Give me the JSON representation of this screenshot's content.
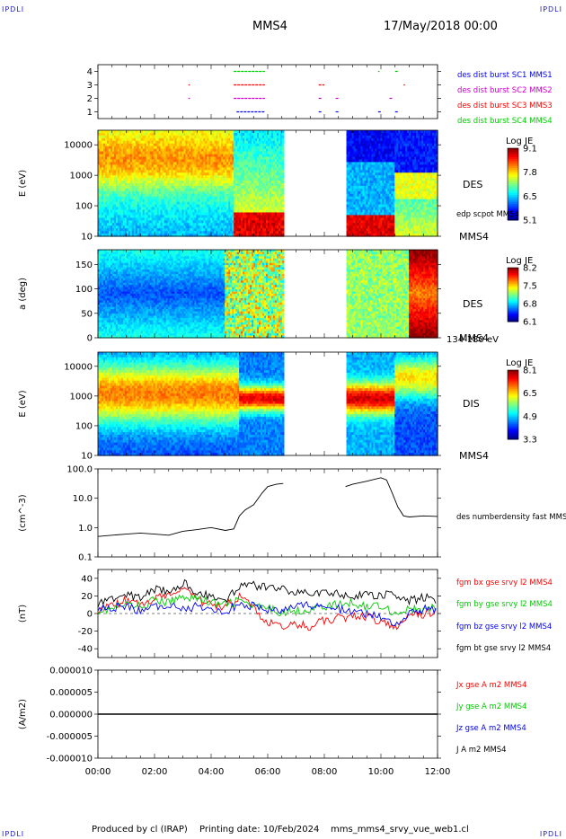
{
  "header": {
    "corner_left_top": "IPDLI",
    "corner_right_top": "IPDLI",
    "corner_left_bottom": "IPDLI",
    "corner_right_bottom": "IPDLI",
    "spacecraft": "MMS4",
    "date": "17/May/2018 00:00"
  },
  "footer": {
    "produced": "Produced by cl (IRAP)",
    "printing": "Printing date: 10/Feb/2024",
    "file": "mms_mms4_srvy_vue_web1.cl"
  },
  "colors": {
    "purple": "#cc00cc",
    "red": "#ff0000",
    "green": "#00cc00",
    "blue": "#0000ff",
    "black": "#000000"
  },
  "chart_data": [
    {
      "type": "scatter",
      "panel": "burst",
      "yticks": [
        "4",
        "3",
        "2",
        "1"
      ],
      "ylim": [
        0.5,
        4.5
      ],
      "series": [
        {
          "name": "des dist burst SC1 MMS1",
          "color": "#0000ff",
          "y": 1,
          "segments": [
            [
              4.9,
              5.9
            ],
            [
              7.8,
              7.9
            ],
            [
              8.4,
              8.5
            ],
            [
              9.9,
              10.0
            ],
            [
              10.5,
              10.6
            ]
          ]
        },
        {
          "name": "des dist burst SC2 MMS2",
          "color": "#cc00cc",
          "y": 2,
          "segments": [
            [
              3.2,
              3.25
            ],
            [
              4.8,
              5.9
            ],
            [
              7.8,
              7.9
            ],
            [
              8.4,
              8.5
            ],
            [
              10.3,
              10.4
            ]
          ]
        },
        {
          "name": "des dist burst SC3 MMS3",
          "color": "#ff0000",
          "y": 3,
          "segments": [
            [
              3.2,
              3.25
            ],
            [
              4.8,
              5.9
            ],
            [
              7.8,
              8.0
            ],
            [
              10.8,
              10.85
            ]
          ]
        },
        {
          "name": "des dist burst SC4 MMS4",
          "color": "#00cc00",
          "y": 4,
          "segments": [
            [
              4.8,
              5.9
            ],
            [
              9.9,
              9.95
            ],
            [
              10.5,
              10.6
            ]
          ]
        }
      ]
    },
    {
      "type": "heatmap",
      "panel": "des_energy",
      "ylabel": "E (eV)",
      "yticks": [
        "10000",
        "1000",
        "100",
        "10"
      ],
      "ylog": true,
      "ylim": [
        10,
        30000
      ],
      "side_label": "DES",
      "side_label_2": "MMS4",
      "overlay_label": "edp scpot MMS4",
      "colorbar": {
        "title": "Log JE",
        "ticks": [
          "9.1",
          "7.8",
          "6.5",
          "5.1"
        ],
        "range": [
          5.1,
          9.1
        ]
      },
      "gap_hours": [
        6.55,
        8.75
      ]
    },
    {
      "type": "heatmap",
      "panel": "des_pitch",
      "ylabel": "a (deg)",
      "yticks": [
        "150",
        "100",
        "50",
        "0"
      ],
      "ylim": [
        0,
        180
      ],
      "side_label": "DES",
      "side_label_2": "MMS4",
      "side_label_3": "134-180 eV",
      "colorbar": {
        "title": "Log JE",
        "ticks": [
          "8.2",
          "7.5",
          "6.8",
          "6.1"
        ],
        "range": [
          6.1,
          8.2
        ]
      },
      "gap_hours": [
        6.55,
        8.75
      ]
    },
    {
      "type": "heatmap",
      "panel": "dis_energy",
      "ylabel": "E (eV)",
      "yticks": [
        "10000",
        "1000",
        "100",
        "10"
      ],
      "ylog": true,
      "ylim": [
        10,
        30000
      ],
      "side_label": "DIS",
      "side_label_2": "MMS4",
      "colorbar": {
        "title": "Log JE",
        "ticks": [
          "8.1",
          "6.5",
          "4.9",
          "3.3"
        ],
        "range": [
          3.3,
          8.1
        ]
      },
      "gap_hours": [
        6.55,
        8.75
      ]
    },
    {
      "type": "line",
      "panel": "density",
      "ylabel": "(cm^-3)",
      "yticks": [
        "100.0",
        "10.0",
        "1.0",
        "0.1"
      ],
      "ylog": true,
      "ylim": [
        0.1,
        100
      ],
      "series": [
        {
          "name": "des numberdensity fast MMS4",
          "color": "#000000",
          "x": [
            0.0,
            0.5,
            1.0,
            1.5,
            2.0,
            2.5,
            3.0,
            3.5,
            4.0,
            4.5,
            4.8,
            5.0,
            5.2,
            5.5,
            5.8,
            6.0,
            6.3,
            6.55,
            8.75,
            9.0,
            9.5,
            10.0,
            10.2,
            10.4,
            10.6,
            10.8,
            11.0,
            11.5,
            12.0
          ],
          "y": [
            0.5,
            0.55,
            0.6,
            0.65,
            0.6,
            0.55,
            0.75,
            0.85,
            1.0,
            0.8,
            0.9,
            2.5,
            4,
            6,
            15,
            25,
            30,
            32,
            25,
            30,
            38,
            50,
            42,
            15,
            5,
            2.5,
            2.3,
            2.5,
            2.4
          ]
        }
      ]
    },
    {
      "type": "line",
      "panel": "fgm",
      "ylabel": "(nT)",
      "yticks": [
        "40",
        "20",
        "0",
        "-20",
        "-40"
      ],
      "ylim": [
        -50,
        50
      ],
      "series": [
        {
          "name": "fgm bx gse srvy l2 MMS4",
          "color": "#ff0000",
          "x": [
            0,
            0.5,
            1,
            1.5,
            2,
            2.5,
            3,
            3.5,
            4,
            4.5,
            5,
            5.5,
            6,
            6.5,
            7,
            7.5,
            8,
            8.5,
            9,
            9.5,
            10,
            10.5,
            11,
            11.5,
            12
          ],
          "y": [
            5,
            8,
            15,
            10,
            18,
            22,
            30,
            15,
            10,
            8,
            20,
            5,
            -10,
            -15,
            -12,
            -15,
            -8,
            -5,
            -3,
            -4,
            -10,
            -15,
            0,
            -2,
            5
          ]
        },
        {
          "name": "fgm by gse srvy l2 MMS4",
          "color": "#00cc00",
          "x": [
            0,
            0.5,
            1,
            1.5,
            2,
            2.5,
            3,
            3.5,
            4,
            4.5,
            5,
            5.5,
            6,
            6.5,
            7,
            7.5,
            8,
            8.5,
            9,
            9.5,
            10,
            10.5,
            11,
            11.5,
            12
          ],
          "y": [
            3,
            5,
            10,
            8,
            15,
            12,
            20,
            18,
            12,
            10,
            15,
            8,
            5,
            2,
            3,
            5,
            8,
            10,
            12,
            8,
            10,
            0,
            5,
            3,
            8
          ]
        },
        {
          "name": "fgm bz gse srvy l2 MMS4",
          "color": "#0000ff",
          "x": [
            0,
            0.5,
            1,
            1.5,
            2,
            2.5,
            3,
            3.5,
            4,
            4.5,
            5,
            5.5,
            6,
            6.5,
            7,
            7.5,
            8,
            8.5,
            9,
            9.5,
            10,
            10.5,
            11,
            11.5,
            12
          ],
          "y": [
            8,
            5,
            10,
            2,
            8,
            10,
            5,
            8,
            5,
            3,
            10,
            8,
            5,
            3,
            8,
            10,
            8,
            5,
            3,
            0,
            -5,
            -15,
            0,
            5,
            5
          ]
        },
        {
          "name": "fgm bt gse srvy l2 MMS4",
          "color": "#000000",
          "x": [
            0,
            0.5,
            1,
            1.5,
            2,
            2.5,
            3,
            3.5,
            4,
            4.5,
            5,
            5.5,
            6,
            6.5,
            7,
            7.5,
            8,
            8.5,
            9,
            9.5,
            10,
            10.5,
            11,
            11.5,
            12
          ],
          "y": [
            12,
            15,
            22,
            18,
            28,
            25,
            35,
            25,
            18,
            15,
            30,
            32,
            30,
            28,
            25,
            22,
            25,
            22,
            20,
            20,
            22,
            20,
            15,
            18,
            15
          ]
        }
      ]
    },
    {
      "type": "line",
      "panel": "current",
      "ylabel": "(A/m2)",
      "yticks": [
        "0.000010",
        "0.000005",
        "0.000000",
        "-0.000005",
        "-0.000010"
      ],
      "ylim": [
        -1e-05,
        1e-05
      ],
      "xticks": [
        "00:00",
        "02:00",
        "04:00",
        "06:00",
        "08:00",
        "10:00",
        "12:00"
      ],
      "xlim": [
        0,
        12
      ],
      "series": [
        {
          "name": "Jx gse A m2 MMS4",
          "color": "#ff0000"
        },
        {
          "name": "Jy gse A m2 MMS4",
          "color": "#00cc00"
        },
        {
          "name": "Jz gse A m2 MMS4",
          "color": "#0000ff"
        },
        {
          "name": "J A m2 MMS4",
          "color": "#000000"
        }
      ]
    }
  ]
}
